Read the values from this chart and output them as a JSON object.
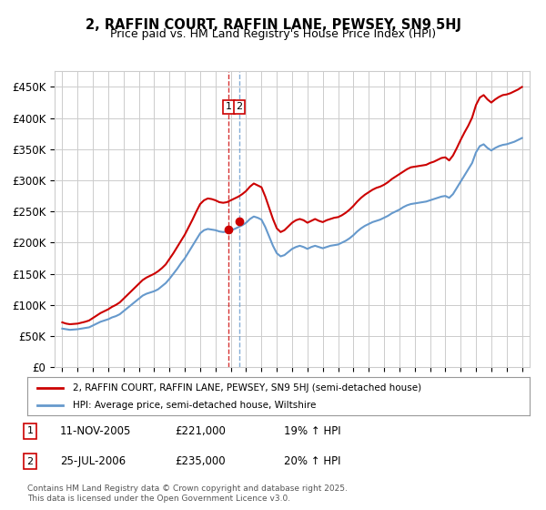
{
  "title": "2, RAFFIN COURT, RAFFIN LANE, PEWSEY, SN9 5HJ",
  "subtitle": "Price paid vs. HM Land Registry's House Price Index (HPI)",
  "ylabel": "",
  "background_color": "#ffffff",
  "grid_color": "#cccccc",
  "hpi_color": "#6699cc",
  "price_color": "#cc0000",
  "ylim": [
    0,
    475000
  ],
  "yticks": [
    0,
    50000,
    100000,
    150000,
    200000,
    250000,
    300000,
    350000,
    400000,
    450000
  ],
  "ytick_labels": [
    "£0",
    "£50K",
    "£100K",
    "£150K",
    "£200K",
    "£250K",
    "£300K",
    "£350K",
    "£400K",
    "£450K"
  ],
  "xlim_start": 1994.5,
  "xlim_end": 2025.5,
  "xticks": [
    1995,
    1996,
    1997,
    1998,
    1999,
    2000,
    2001,
    2002,
    2003,
    2004,
    2005,
    2006,
    2007,
    2008,
    2009,
    2010,
    2011,
    2012,
    2013,
    2014,
    2015,
    2016,
    2017,
    2018,
    2019,
    2020,
    2021,
    2022,
    2023,
    2024,
    2025
  ],
  "transaction1_date": 2005.87,
  "transaction1_price": 221000,
  "transaction1_label": "1",
  "transaction2_date": 2006.56,
  "transaction2_price": 235000,
  "transaction2_label": "2",
  "legend_line1": "2, RAFFIN COURT, RAFFIN LANE, PEWSEY, SN9 5HJ (semi-detached house)",
  "legend_line2": "HPI: Average price, semi-detached house, Wiltshire",
  "table_row1": [
    "1",
    "11-NOV-2005",
    "£221,000",
    "19% ↑ HPI"
  ],
  "table_row2": [
    "2",
    "25-JUL-2006",
    "£235,000",
    "20% ↑ HPI"
  ],
  "footer": "Contains HM Land Registry data © Crown copyright and database right 2025.\nThis data is licensed under the Open Government Licence v3.0.",
  "hpi_data_x": [
    1995.0,
    1995.25,
    1995.5,
    1995.75,
    1996.0,
    1996.25,
    1996.5,
    1996.75,
    1997.0,
    1997.25,
    1997.5,
    1997.75,
    1998.0,
    1998.25,
    1998.5,
    1998.75,
    1999.0,
    1999.25,
    1999.5,
    1999.75,
    2000.0,
    2000.25,
    2000.5,
    2000.75,
    2001.0,
    2001.25,
    2001.5,
    2001.75,
    2002.0,
    2002.25,
    2002.5,
    2002.75,
    2003.0,
    2003.25,
    2003.5,
    2003.75,
    2004.0,
    2004.25,
    2004.5,
    2004.75,
    2005.0,
    2005.25,
    2005.5,
    2005.75,
    2006.0,
    2006.25,
    2006.5,
    2006.75,
    2007.0,
    2007.25,
    2007.5,
    2007.75,
    2008.0,
    2008.25,
    2008.5,
    2008.75,
    2009.0,
    2009.25,
    2009.5,
    2009.75,
    2010.0,
    2010.25,
    2010.5,
    2010.75,
    2011.0,
    2011.25,
    2011.5,
    2011.75,
    2012.0,
    2012.25,
    2012.5,
    2012.75,
    2013.0,
    2013.25,
    2013.5,
    2013.75,
    2014.0,
    2014.25,
    2014.5,
    2014.75,
    2015.0,
    2015.25,
    2015.5,
    2015.75,
    2016.0,
    2016.25,
    2016.5,
    2016.75,
    2017.0,
    2017.25,
    2017.5,
    2017.75,
    2018.0,
    2018.25,
    2018.5,
    2018.75,
    2019.0,
    2019.25,
    2019.5,
    2019.75,
    2020.0,
    2020.25,
    2020.5,
    2020.75,
    2021.0,
    2021.25,
    2021.5,
    2021.75,
    2022.0,
    2022.25,
    2022.5,
    2022.75,
    2023.0,
    2023.25,
    2023.5,
    2023.75,
    2024.0,
    2024.25,
    2024.5,
    2024.75,
    2025.0
  ],
  "hpi_data_y": [
    62000,
    61000,
    60000,
    60500,
    61000,
    62000,
    63000,
    64000,
    67000,
    70000,
    73000,
    75000,
    77000,
    80000,
    82000,
    85000,
    90000,
    95000,
    100000,
    105000,
    110000,
    115000,
    118000,
    120000,
    122000,
    125000,
    130000,
    135000,
    142000,
    150000,
    158000,
    167000,
    175000,
    185000,
    195000,
    205000,
    215000,
    220000,
    222000,
    221000,
    220000,
    218000,
    217000,
    218000,
    220000,
    222000,
    225000,
    228000,
    232000,
    238000,
    242000,
    240000,
    237000,
    225000,
    210000,
    195000,
    183000,
    178000,
    180000,
    185000,
    190000,
    193000,
    195000,
    193000,
    190000,
    193000,
    195000,
    193000,
    191000,
    193000,
    195000,
    196000,
    197000,
    200000,
    203000,
    207000,
    212000,
    218000,
    223000,
    227000,
    230000,
    233000,
    235000,
    237000,
    240000,
    243000,
    247000,
    250000,
    253000,
    257000,
    260000,
    262000,
    263000,
    264000,
    265000,
    266000,
    268000,
    270000,
    272000,
    274000,
    275000,
    272000,
    278000,
    288000,
    298000,
    308000,
    318000,
    328000,
    345000,
    355000,
    358000,
    352000,
    348000,
    352000,
    355000,
    357000,
    358000,
    360000,
    362000,
    365000,
    368000
  ],
  "price_data_x": [
    1995.0,
    1995.25,
    1995.5,
    1995.75,
    1996.0,
    1996.25,
    1996.5,
    1996.75,
    1997.0,
    1997.25,
    1997.5,
    1997.75,
    1998.0,
    1998.25,
    1998.5,
    1998.75,
    1999.0,
    1999.25,
    1999.5,
    1999.75,
    2000.0,
    2000.25,
    2000.5,
    2000.75,
    2001.0,
    2001.25,
    2001.5,
    2001.75,
    2002.0,
    2002.25,
    2002.5,
    2002.75,
    2003.0,
    2003.25,
    2003.5,
    2003.75,
    2004.0,
    2004.25,
    2004.5,
    2004.75,
    2005.0,
    2005.25,
    2005.5,
    2005.75,
    2006.0,
    2006.25,
    2006.5,
    2006.75,
    2007.0,
    2007.25,
    2007.5,
    2007.75,
    2008.0,
    2008.25,
    2008.5,
    2008.75,
    2009.0,
    2009.25,
    2009.5,
    2009.75,
    2010.0,
    2010.25,
    2010.5,
    2010.75,
    2011.0,
    2011.25,
    2011.5,
    2011.75,
    2012.0,
    2012.25,
    2012.5,
    2012.75,
    2013.0,
    2013.25,
    2013.5,
    2013.75,
    2014.0,
    2014.25,
    2014.5,
    2014.75,
    2015.0,
    2015.25,
    2015.5,
    2015.75,
    2016.0,
    2016.25,
    2016.5,
    2016.75,
    2017.0,
    2017.25,
    2017.5,
    2017.75,
    2018.0,
    2018.25,
    2018.5,
    2018.75,
    2019.0,
    2019.25,
    2019.5,
    2019.75,
    2020.0,
    2020.25,
    2020.5,
    2020.75,
    2021.0,
    2021.25,
    2021.5,
    2021.75,
    2022.0,
    2022.25,
    2022.5,
    2022.75,
    2023.0,
    2023.25,
    2023.5,
    2023.75,
    2024.0,
    2024.25,
    2024.5,
    2024.75,
    2025.0
  ],
  "price_data_y": [
    72000,
    70000,
    69000,
    69500,
    70000,
    71500,
    73000,
    75000,
    79000,
    83000,
    87000,
    90000,
    93000,
    97000,
    100000,
    104000,
    110000,
    116000,
    122000,
    128000,
    134000,
    140000,
    144000,
    147000,
    150000,
    154000,
    159000,
    165000,
    174000,
    183000,
    193000,
    203000,
    213000,
    225000,
    237000,
    250000,
    262000,
    268000,
    271000,
    270000,
    268000,
    265000,
    264000,
    265000,
    268000,
    271000,
    274000,
    278000,
    283000,
    290000,
    295000,
    292000,
    289000,
    274000,
    256000,
    238000,
    223000,
    217000,
    220000,
    226000,
    232000,
    236000,
    238000,
    236000,
    232000,
    235000,
    238000,
    235000,
    233000,
    236000,
    238000,
    240000,
    241000,
    244000,
    248000,
    253000,
    259000,
    266000,
    272000,
    277000,
    281000,
    285000,
    288000,
    290000,
    293000,
    297000,
    302000,
    306000,
    310000,
    314000,
    318000,
    321000,
    322000,
    323000,
    324000,
    325000,
    328000,
    330000,
    333000,
    336000,
    337000,
    332000,
    340000,
    352000,
    365000,
    377000,
    388000,
    401000,
    421000,
    433000,
    437000,
    430000,
    425000,
    430000,
    434000,
    437000,
    438000,
    440000,
    443000,
    446000,
    450000
  ]
}
